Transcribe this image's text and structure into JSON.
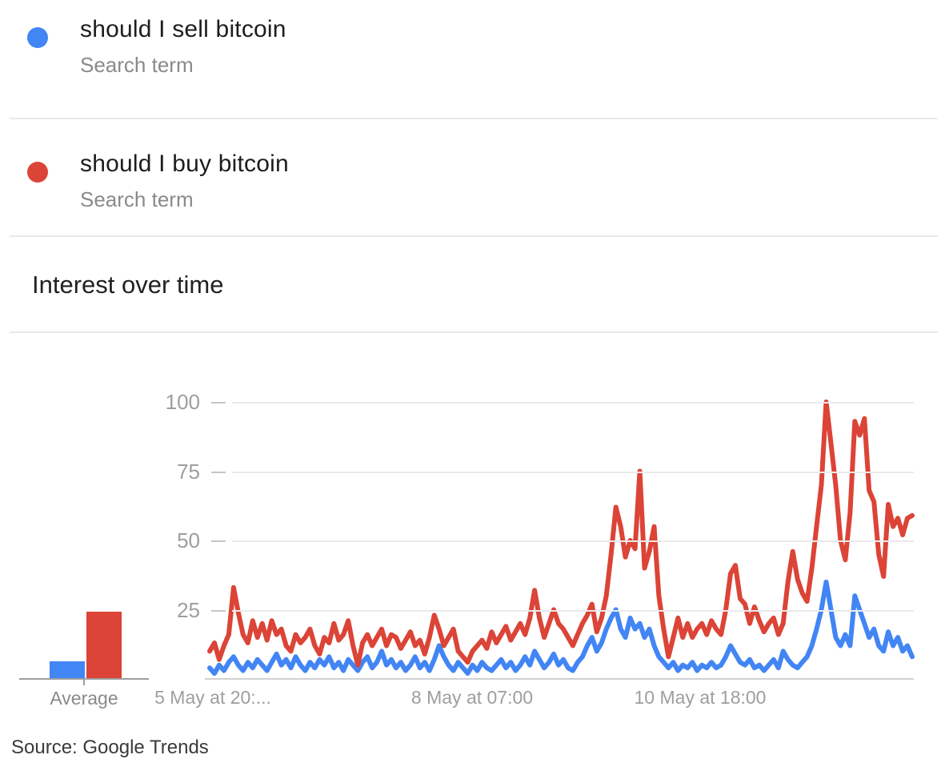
{
  "terms": [
    {
      "label": "should I sell bitcoin",
      "type_label": "Search term",
      "color": "#4285f4"
    },
    {
      "label": "should I buy bitcoin",
      "type_label": "Search term",
      "color": "#db4437"
    }
  ],
  "section": {
    "title": "Interest over time"
  },
  "source_caption": "Source: Google Trends",
  "chart_data": {
    "type": "line",
    "title": "Interest over time",
    "xlabel": "",
    "ylabel": "",
    "ylim": [
      0,
      100
    ],
    "yticks": [
      100,
      75,
      50,
      25
    ],
    "xtick_labels": [
      "5 May at 20:...",
      "8 May at 07:00",
      "10 May at 18:00"
    ],
    "grid": true,
    "legend_position": "none",
    "average": {
      "label": "Average",
      "bars": [
        {
          "name": "should I sell bitcoin",
          "value": 6,
          "color": "#4285f4"
        },
        {
          "name": "should I buy bitcoin",
          "value": 24,
          "color": "#db4437"
        }
      ]
    },
    "series": [
      {
        "name": "should I sell bitcoin",
        "color": "#4285f4",
        "values": [
          4,
          2,
          5,
          3,
          6,
          8,
          5,
          3,
          6,
          4,
          7,
          5,
          3,
          6,
          9,
          5,
          7,
          4,
          8,
          5,
          3,
          6,
          4,
          7,
          5,
          8,
          4,
          6,
          3,
          7,
          5,
          3,
          6,
          8,
          4,
          6,
          10,
          5,
          7,
          4,
          6,
          3,
          5,
          8,
          4,
          6,
          3,
          7,
          12,
          8,
          5,
          3,
          6,
          4,
          2,
          5,
          3,
          6,
          4,
          3,
          5,
          7,
          4,
          6,
          3,
          5,
          8,
          5,
          10,
          7,
          4,
          6,
          9,
          5,
          7,
          4,
          3,
          6,
          8,
          12,
          15,
          10,
          13,
          18,
          22,
          25,
          18,
          15,
          22,
          18,
          20,
          15,
          18,
          12,
          8,
          6,
          4,
          6,
          3,
          5,
          4,
          6,
          3,
          5,
          4,
          6,
          4,
          5,
          8,
          12,
          9,
          6,
          5,
          7,
          4,
          5,
          3,
          5,
          7,
          4,
          10,
          7,
          5,
          4,
          6,
          8,
          12,
          18,
          25,
          35,
          25,
          15,
          12,
          16,
          12,
          30,
          25,
          20,
          15,
          18,
          12,
          10,
          17,
          12,
          15,
          10,
          12,
          8
        ]
      },
      {
        "name": "should I buy bitcoin",
        "color": "#db4437",
        "values": [
          10,
          13,
          7,
          12,
          16,
          33,
          24,
          16,
          13,
          21,
          15,
          20,
          14,
          21,
          16,
          18,
          12,
          10,
          16,
          13,
          15,
          18,
          12,
          9,
          15,
          13,
          20,
          14,
          16,
          21,
          12,
          5,
          13,
          16,
          12,
          15,
          18,
          12,
          16,
          15,
          11,
          14,
          17,
          12,
          14,
          9,
          15,
          23,
          18,
          12,
          15,
          18,
          10,
          8,
          6,
          10,
          12,
          14,
          11,
          17,
          13,
          16,
          19,
          14,
          17,
          20,
          16,
          22,
          32,
          22,
          15,
          20,
          25,
          20,
          18,
          15,
          12,
          16,
          20,
          23,
          27,
          17,
          22,
          30,
          45,
          62,
          55,
          44,
          50,
          47,
          75,
          40,
          46,
          55,
          30,
          18,
          8,
          15,
          22,
          15,
          20,
          15,
          18,
          20,
          16,
          21,
          18,
          16,
          25,
          38,
          41,
          29,
          27,
          20,
          26,
          21,
          17,
          20,
          22,
          16,
          20,
          35,
          46,
          36,
          31,
          28,
          40,
          55,
          70,
          100,
          85,
          70,
          50,
          43,
          60,
          93,
          88,
          94,
          68,
          64,
          45,
          37,
          63,
          55,
          58,
          52,
          58,
          59
        ]
      }
    ]
  }
}
